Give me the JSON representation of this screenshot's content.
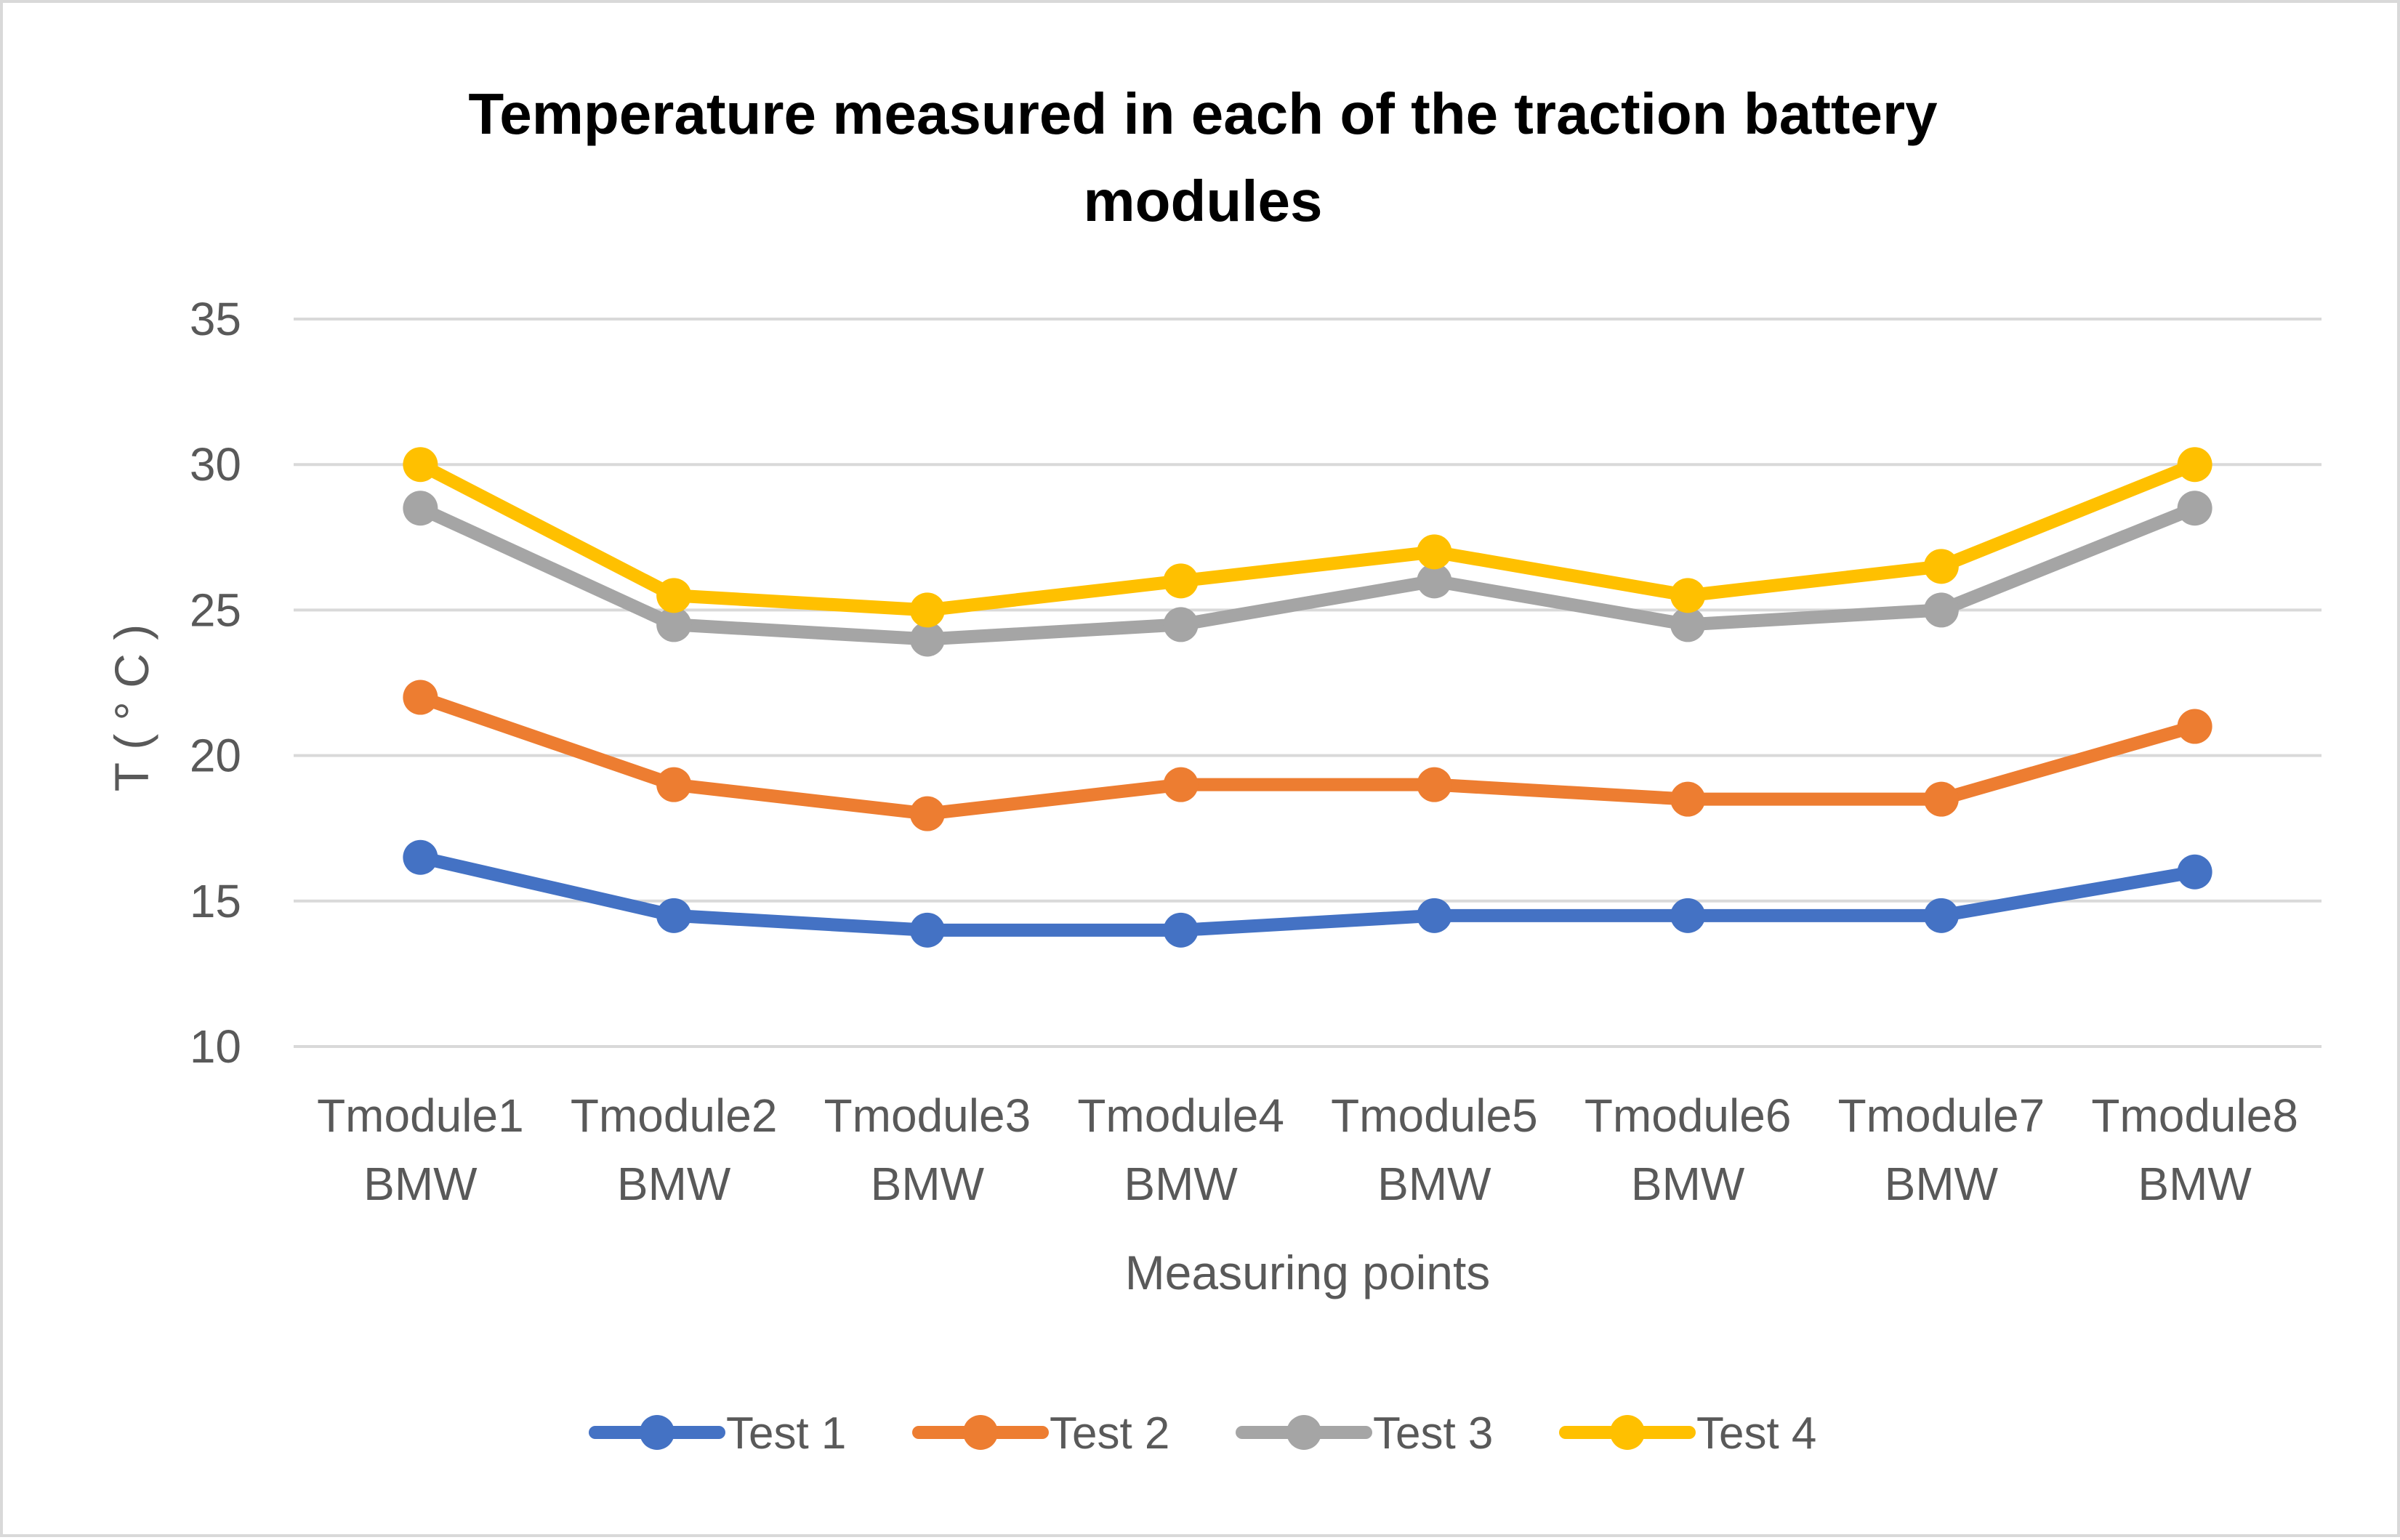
{
  "chart_data": {
    "type": "line",
    "title_lines": [
      "Temperature measured in each of the traction battery",
      "modules"
    ],
    "xlabel": "Measuring points",
    "ylabel": "T ( ° C )",
    "categories": [
      [
        "Tmodule1",
        "BMW"
      ],
      [
        "Tmodule2",
        "BMW"
      ],
      [
        "Tmodule3",
        "BMW"
      ],
      [
        "Tmodule4",
        "BMW"
      ],
      [
        "Tmodule5",
        "BMW"
      ],
      [
        "Tmodule6",
        "BMW"
      ],
      [
        "Tmodule7",
        "BMW"
      ],
      [
        "Tmodule8",
        "BMW"
      ]
    ],
    "ylim": [
      10,
      35
    ],
    "yticks": [
      10,
      15,
      20,
      25,
      30,
      35
    ],
    "ytick_labels": [
      "10",
      "15",
      "20",
      "25",
      "30",
      "35"
    ],
    "grid": true,
    "legend_position": "bottom",
    "series": [
      {
        "name": "Test 1",
        "color": "#4472c4",
        "values": [
          16.5,
          14.5,
          14,
          14,
          14.5,
          14.5,
          14.5,
          16
        ]
      },
      {
        "name": "Test 2",
        "color": "#ed7d31",
        "values": [
          22,
          19,
          18,
          19,
          19,
          18.5,
          18.5,
          21
        ]
      },
      {
        "name": "Test 3",
        "color": "#a5a5a5",
        "values": [
          28.5,
          24.5,
          24,
          24.5,
          26,
          24.5,
          25,
          28.5
        ]
      },
      {
        "name": "Test 4",
        "color": "#ffc000",
        "values": [
          30,
          25.5,
          25,
          26,
          27,
          25.5,
          26.5,
          30
        ]
      }
    ]
  }
}
